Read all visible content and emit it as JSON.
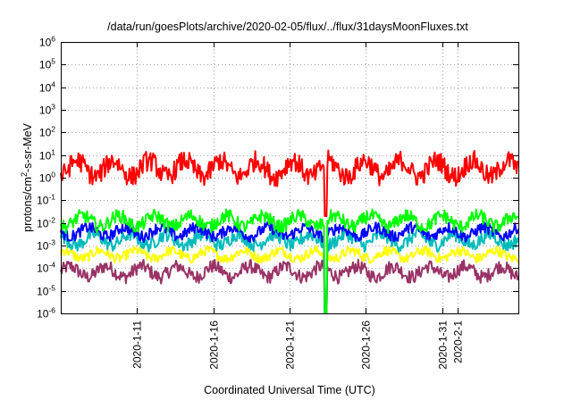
{
  "chart_data": {
    "type": "line",
    "title": "/data/run/goesPlots/archive/2020-02-05/flux/../flux/31daysMoonFluxes.txt",
    "xlabel": "Coordinated Universal Time (UTC)",
    "ylabel": {
      "prefix": "protons/cm",
      "sup": "2",
      "suffix": "-s-sr-MeV"
    },
    "yscale": "log",
    "ylim": [
      1e-06,
      1000000.0
    ],
    "xlim": [
      "2020-01-06",
      "2020-02-05"
    ],
    "grid": true,
    "legend": "none",
    "y_ticks": [
      {
        "value": 1e-06,
        "base": "10",
        "exp": "-6"
      },
      {
        "value": 1e-05,
        "base": "10",
        "exp": "-5"
      },
      {
        "value": 0.0001,
        "base": "10",
        "exp": "-4"
      },
      {
        "value": 0.001,
        "base": "10",
        "exp": "-3"
      },
      {
        "value": 0.01,
        "base": "10",
        "exp": "-2"
      },
      {
        "value": 0.1,
        "base": "10",
        "exp": "-1"
      },
      {
        "value": 1.0,
        "base": "10",
        "exp": "0"
      },
      {
        "value": 10.0,
        "base": "10",
        "exp": "1"
      },
      {
        "value": 100.0,
        "base": "10",
        "exp": "2"
      },
      {
        "value": 1000.0,
        "base": "10",
        "exp": "3"
      },
      {
        "value": 10000.0,
        "base": "10",
        "exp": "4"
      },
      {
        "value": 100000.0,
        "base": "10",
        "exp": "5"
      },
      {
        "value": 1000000.0,
        "base": "10",
        "exp": "6"
      }
    ],
    "x_ticks": [
      "2020-1-11",
      "2020-1-16",
      "2020-1-21",
      "2020-1-26",
      "2020-1-31",
      "2020-2-1"
    ],
    "x_tick_values": [
      "2020-01-11",
      "2020-01-16",
      "2020-01-21",
      "2020-01-26",
      "2020-01-31",
      "2020-02-01"
    ],
    "data_gap": "2020-01-23",
    "series": [
      {
        "color": "#ff0000",
        "typical": 2.5,
        "spread": 0.45,
        "drop": 0.02
      },
      {
        "color": "#00ff00",
        "typical": 0.012,
        "spread": 0.3,
        "drop": 1e-07
      },
      {
        "color": "#0000ff",
        "typical": 0.004,
        "spread": 0.25,
        "drop": 1e-07
      },
      {
        "color": "#00bbbb",
        "typical": 0.0018,
        "spread": 0.3,
        "drop": 1e-07
      },
      {
        "color": "#ffff00",
        "typical": 0.0004,
        "spread": 0.22,
        "drop": 1e-07
      },
      {
        "color": "#993366",
        "typical": 7e-05,
        "spread": 0.3,
        "drop": 1e-07
      }
    ]
  }
}
